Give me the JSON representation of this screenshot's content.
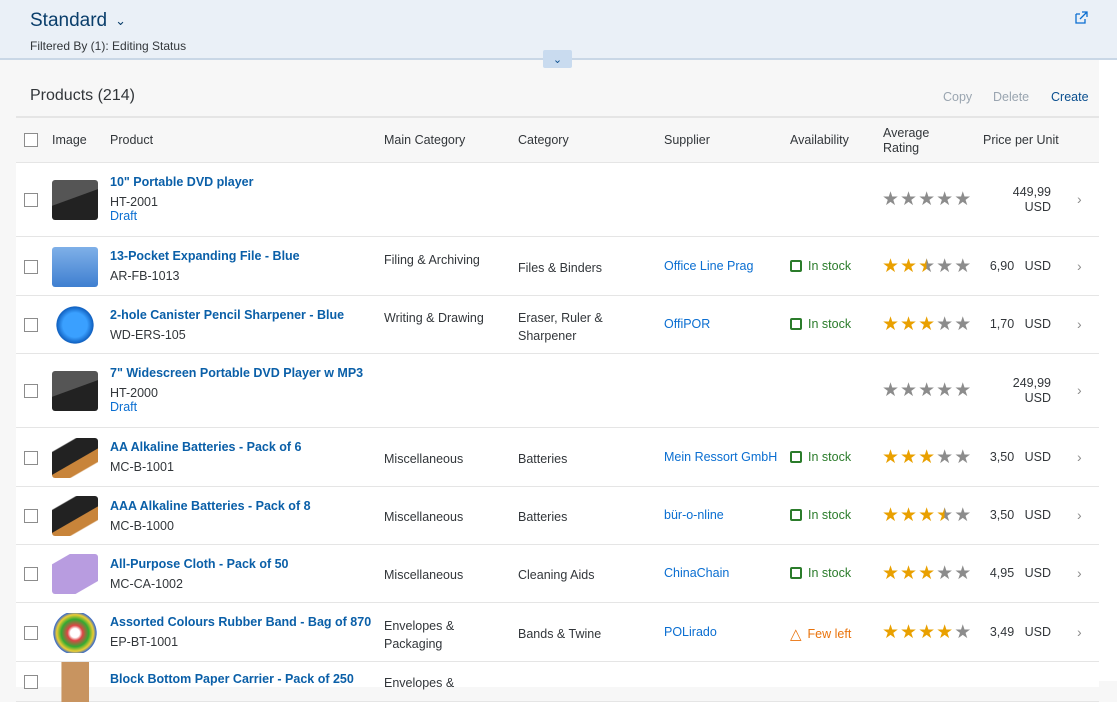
{
  "header": {
    "variant": "Standard",
    "filter_text": "Filtered By (1): Editing Status"
  },
  "table": {
    "title": "Products (214)",
    "actions": {
      "copy": "Copy",
      "delete": "Delete",
      "create": "Create"
    },
    "columns": [
      "Image",
      "Product",
      "Main Category",
      "Category",
      "Supplier",
      "Availability",
      "Average Rating",
      "Price per Unit"
    ],
    "rows": [
      {
        "name": "10\" Portable DVD player",
        "id": "HT-2001",
        "draft": "Draft",
        "main_category": "",
        "category": "",
        "supplier": "",
        "availability": "",
        "availability_type": "",
        "rating": 0,
        "price": "449,99",
        "currency": "USD",
        "image": "laptop"
      },
      {
        "name": "13-Pocket Expanding File - Blue",
        "id": "AR-FB-1013",
        "draft": "",
        "main_category": "Filing & Archiving",
        "category": "Files & Binders",
        "supplier": "Office Line Prag",
        "availability": "In stock",
        "availability_type": "success",
        "rating": 2.5,
        "price": "6,90",
        "currency": "USD",
        "image": "file"
      },
      {
        "name": "2-hole Canister Pencil Sharpener - Blue",
        "id": "WD-ERS-105",
        "draft": "",
        "main_category": "Writing & Drawing",
        "category": "Eraser, Ruler & Sharpener",
        "supplier": "OffiPOR",
        "availability": "In stock",
        "availability_type": "success",
        "rating": 3,
        "price": "1,70",
        "currency": "USD",
        "image": "sharpener"
      },
      {
        "name": "7\" Widescreen Portable DVD Player w MP3",
        "id": "HT-2000",
        "draft": "Draft",
        "main_category": "",
        "category": "",
        "supplier": "",
        "availability": "",
        "availability_type": "",
        "rating": 0,
        "price": "249,99",
        "currency": "USD",
        "image": "laptop"
      },
      {
        "name": "AA Alkaline Batteries - Pack of 6",
        "id": "MC-B-1001",
        "draft": "",
        "main_category": "Miscellaneous",
        "category": "Batteries",
        "supplier": "Mein Ressort GmbH",
        "availability": "In stock",
        "availability_type": "success",
        "rating": 3,
        "price": "3,50",
        "currency": "USD",
        "image": "battery"
      },
      {
        "name": "AAA Alkaline Batteries - Pack of 8",
        "id": "MC-B-1000",
        "draft": "",
        "main_category": "Miscellaneous",
        "category": "Batteries",
        "supplier": "bür-o-nline",
        "availability": "In stock",
        "availability_type": "success",
        "rating": 3.5,
        "price": "3,50",
        "currency": "USD",
        "image": "battery"
      },
      {
        "name": "All-Purpose Cloth - Pack of 50",
        "id": "MC-CA-1002",
        "draft": "",
        "main_category": "Miscellaneous",
        "category": "Cleaning Aids",
        "supplier": "ChinaChain",
        "availability": "In stock",
        "availability_type": "success",
        "rating": 3,
        "price": "4,95",
        "currency": "USD",
        "image": "cloth"
      },
      {
        "name": "Assorted Colours Rubber Band - Bag of 870",
        "id": "EP-BT-1001",
        "draft": "",
        "main_category": "Envelopes & Packaging",
        "category": "Bands & Twine",
        "supplier": "POLirado",
        "availability": "Few left",
        "availability_type": "warning",
        "rating": 4,
        "price": "3,49",
        "currency": "USD",
        "image": "bands"
      },
      {
        "name": "Block Bottom Paper Carrier - Pack of 250",
        "id": "",
        "draft": "",
        "main_category": "Envelopes &",
        "category": "",
        "supplier": "",
        "availability": "",
        "availability_type": "",
        "rating": 0,
        "price": "",
        "currency": "",
        "image": "bag"
      }
    ]
  },
  "colors": {
    "accent": "#0a6ed1",
    "star_on": "#e9a000",
    "star_off": "#8c8c8c",
    "success": "#2b7c2b",
    "warning": "#e9730c"
  }
}
